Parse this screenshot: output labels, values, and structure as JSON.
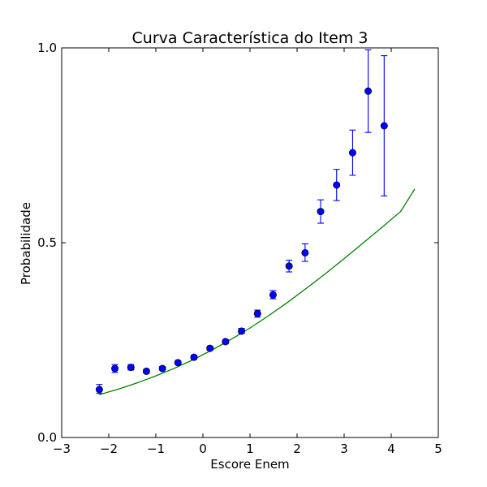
{
  "chart_data": {
    "type": "scatter",
    "title": "Curva Característica do Item 3",
    "xlabel": "Escore Enem",
    "ylabel": "Probabilidade",
    "xlim": [
      -3,
      5
    ],
    "ylim": [
      0.0,
      1.0
    ],
    "x_ticks": [
      -3,
      -2,
      -1,
      0,
      1,
      2,
      3,
      4,
      5
    ],
    "x_tick_labels": [
      "−3",
      "−2",
      "−1",
      "0",
      "1",
      "2",
      "3",
      "4",
      "5"
    ],
    "y_ticks": [
      0.0,
      0.5,
      1.0
    ],
    "y_tick_labels": [
      "0.0",
      "0.5",
      "1.0"
    ],
    "grid": false,
    "legend": "none",
    "series": [
      {
        "type": "errorbar",
        "color": "#0000ff",
        "points": [
          {
            "x": -2.2,
            "y": 0.123,
            "lo": 0.113,
            "hi": 0.136
          },
          {
            "x": -1.87,
            "y": 0.177,
            "lo": 0.167,
            "hi": 0.187
          },
          {
            "x": -1.53,
            "y": 0.18,
            "lo": 0.173,
            "hi": 0.187
          },
          {
            "x": -1.2,
            "y": 0.17,
            "lo": 0.165,
            "hi": 0.175
          },
          {
            "x": -0.86,
            "y": 0.177,
            "lo": 0.173,
            "hi": 0.182
          },
          {
            "x": -0.53,
            "y": 0.192,
            "lo": 0.188,
            "hi": 0.197
          },
          {
            "x": -0.19,
            "y": 0.206,
            "lo": 0.201,
            "hi": 0.211
          },
          {
            "x": 0.15,
            "y": 0.229,
            "lo": 0.224,
            "hi": 0.234
          },
          {
            "x": 0.48,
            "y": 0.246,
            "lo": 0.241,
            "hi": 0.251
          },
          {
            "x": 0.82,
            "y": 0.273,
            "lo": 0.267,
            "hi": 0.28
          },
          {
            "x": 1.16,
            "y": 0.318,
            "lo": 0.309,
            "hi": 0.327
          },
          {
            "x": 1.49,
            "y": 0.366,
            "lo": 0.356,
            "hi": 0.377
          },
          {
            "x": 1.83,
            "y": 0.44,
            "lo": 0.425,
            "hi": 0.455
          },
          {
            "x": 2.17,
            "y": 0.474,
            "lo": 0.452,
            "hi": 0.497
          },
          {
            "x": 2.5,
            "y": 0.58,
            "lo": 0.55,
            "hi": 0.61
          },
          {
            "x": 2.84,
            "y": 0.648,
            "lo": 0.608,
            "hi": 0.688
          },
          {
            "x": 3.18,
            "y": 0.731,
            "lo": 0.673,
            "hi": 0.789
          },
          {
            "x": 3.51,
            "y": 0.889,
            "lo": 0.783,
            "hi": 0.995
          },
          {
            "x": 3.85,
            "y": 0.8,
            "lo": 0.62,
            "hi": 0.98
          }
        ]
      },
      {
        "type": "line",
        "color": "#008000",
        "x": [
          -2.2,
          -1.8,
          -1.4,
          -1.0,
          -0.6,
          -0.2,
          0.2,
          0.6,
          1.0,
          1.4,
          1.8,
          2.2,
          2.6,
          3.0,
          3.4,
          3.8,
          4.2,
          4.5
        ],
        "y": [
          0.11,
          0.124,
          0.14,
          0.158,
          0.178,
          0.2,
          0.225,
          0.252,
          0.281,
          0.313,
          0.347,
          0.383,
          0.42,
          0.459,
          0.499,
          0.539,
          0.58,
          0.638
        ]
      }
    ]
  }
}
